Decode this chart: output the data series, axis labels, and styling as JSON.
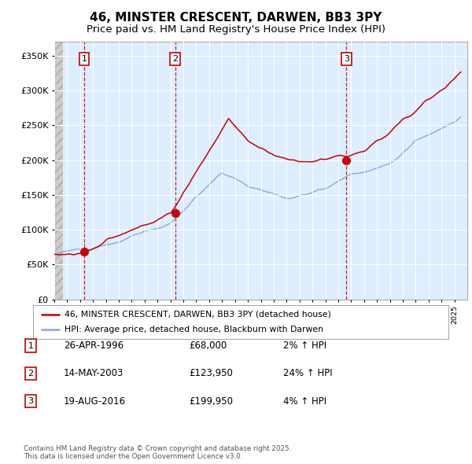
{
  "title": "46, MINSTER CRESCENT, DARWEN, BB3 3PY",
  "subtitle": "Price paid vs. HM Land Registry's House Price Index (HPI)",
  "ylim": [
    0,
    370000
  ],
  "yticks": [
    0,
    50000,
    100000,
    150000,
    200000,
    250000,
    300000,
    350000
  ],
  "ytick_labels": [
    "£0",
    "£50K",
    "£100K",
    "£150K",
    "£200K",
    "£250K",
    "£300K",
    "£350K"
  ],
  "x_start_year": 1994,
  "x_end_year": 2026,
  "sale_dates": [
    1996.32,
    2003.37,
    2016.64
  ],
  "sale_prices": [
    68000,
    123950,
    199950
  ],
  "sale_labels": [
    "1",
    "2",
    "3"
  ],
  "sale_color": "#cc0000",
  "hpi_color": "#88aadd",
  "legend_sale": "46, MINSTER CRESCENT, DARWEN, BB3 3PY (detached house)",
  "legend_hpi": "HPI: Average price, detached house, Blackburn with Darwen",
  "transaction_rows": [
    [
      "1",
      "26-APR-1996",
      "£68,000",
      "2% ↑ HPI"
    ],
    [
      "2",
      "14-MAY-2003",
      "£123,950",
      "24% ↑ HPI"
    ],
    [
      "3",
      "19-AUG-2016",
      "£199,950",
      "4% ↑ HPI"
    ]
  ],
  "footer": "Contains HM Land Registry data © Crown copyright and database right 2025.\nThis data is licensed under the Open Government Licence v3.0.",
  "background_color": "#ffffff",
  "plot_bg_color": "#ddeeff",
  "grid_color": "#ffffff",
  "title_fontsize": 11,
  "subtitle_fontsize": 9.5
}
